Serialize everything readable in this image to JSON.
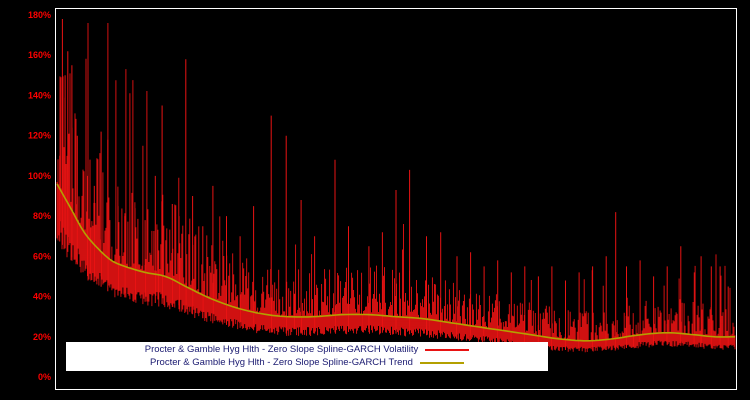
{
  "chart_data": {
    "type": "line",
    "title": "",
    "xlabel": "",
    "ylabel": "",
    "ylim": [
      0,
      180
    ],
    "yticks": [
      "0%",
      "20%",
      "40%",
      "60%",
      "80%",
      "100%",
      "120%",
      "140%",
      "160%",
      "180%"
    ],
    "ytick_values": [
      0,
      20,
      40,
      60,
      80,
      100,
      120,
      140,
      160,
      180
    ],
    "grid": false,
    "legend_position": "bottom-center",
    "background_color": "#000000",
    "frame_color": "#ffffff",
    "axis_label_color": "#ff0000",
    "legend_text_color": "#191970",
    "series": [
      {
        "name": "Procter & Gamble Hyg  Hlth - Zero Slope Spline-GARCH Volatility",
        "color": "#e81313",
        "kind": "volatility"
      },
      {
        "name": "Procter & Gamble Hyg  Hlth - Zero Slope Spline-GARCH Trend",
        "color": "#b3a000",
        "kind": "trend"
      }
    ],
    "trend": {
      "x": [
        0,
        0.02,
        0.04,
        0.06,
        0.08,
        0.1,
        0.13,
        0.16,
        0.19,
        0.22,
        0.25,
        0.28,
        0.31,
        0.34,
        0.38,
        0.42,
        0.46,
        0.5,
        0.54,
        0.58,
        0.62,
        0.66,
        0.7,
        0.74,
        0.78,
        0.82,
        0.86,
        0.9,
        0.94,
        0.97,
        1.0
      ],
      "y": [
        96,
        84,
        72,
        64,
        58,
        55,
        52,
        50,
        45,
        40,
        36,
        33,
        31,
        30,
        30,
        31,
        31,
        30,
        29,
        27,
        25,
        23,
        21,
        19,
        18,
        19,
        21,
        22,
        21,
        20,
        20
      ]
    },
    "volatility": {
      "n_points": 680,
      "seed": 42,
      "band_low": [
        0.68,
        0.15
      ],
      "band_high": [
        1.0,
        0.8
      ],
      "spike_chance": 0.04,
      "spikes": [
        [
          0.004,
          110
        ],
        [
          0.008,
          178
        ],
        [
          0.012,
          150
        ],
        [
          0.016,
          162
        ],
        [
          0.022,
          155
        ],
        [
          0.03,
          120
        ],
        [
          0.045,
          100
        ],
        [
          0.055,
          95
        ],
        [
          0.065,
          122
        ],
        [
          0.075,
          118
        ],
        [
          0.09,
          85
        ],
        [
          0.1,
          80
        ],
        [
          0.115,
          84
        ],
        [
          0.13,
          78
        ],
        [
          0.145,
          100
        ],
        [
          0.155,
          135
        ],
        [
          0.17,
          86
        ],
        [
          0.18,
          80
        ],
        [
          0.19,
          158
        ],
        [
          0.2,
          90
        ],
        [
          0.215,
          75
        ],
        [
          0.23,
          95
        ],
        [
          0.25,
          80
        ],
        [
          0.27,
          70
        ],
        [
          0.29,
          85
        ],
        [
          0.316,
          130
        ],
        [
          0.338,
          120
        ],
        [
          0.36,
          88
        ],
        [
          0.38,
          70
        ],
        [
          0.41,
          108
        ],
        [
          0.43,
          75
        ],
        [
          0.46,
          65
        ],
        [
          0.48,
          72
        ],
        [
          0.5,
          93
        ],
        [
          0.52,
          103
        ],
        [
          0.545,
          70
        ],
        [
          0.566,
          72
        ],
        [
          0.59,
          60
        ],
        [
          0.61,
          62
        ],
        [
          0.63,
          55
        ],
        [
          0.65,
          58
        ],
        [
          0.67,
          52
        ],
        [
          0.69,
          55
        ],
        [
          0.71,
          50
        ],
        [
          0.73,
          55
        ],
        [
          0.75,
          48
        ],
        [
          0.77,
          52
        ],
        [
          0.79,
          55
        ],
        [
          0.81,
          60
        ],
        [
          0.824,
          82
        ],
        [
          0.84,
          55
        ],
        [
          0.86,
          58
        ],
        [
          0.88,
          50
        ],
        [
          0.9,
          55
        ],
        [
          0.92,
          65
        ],
        [
          0.94,
          52
        ],
        [
          0.95,
          60
        ],
        [
          0.965,
          55
        ],
        [
          0.978,
          55
        ],
        [
          0.99,
          45
        ]
      ]
    }
  }
}
